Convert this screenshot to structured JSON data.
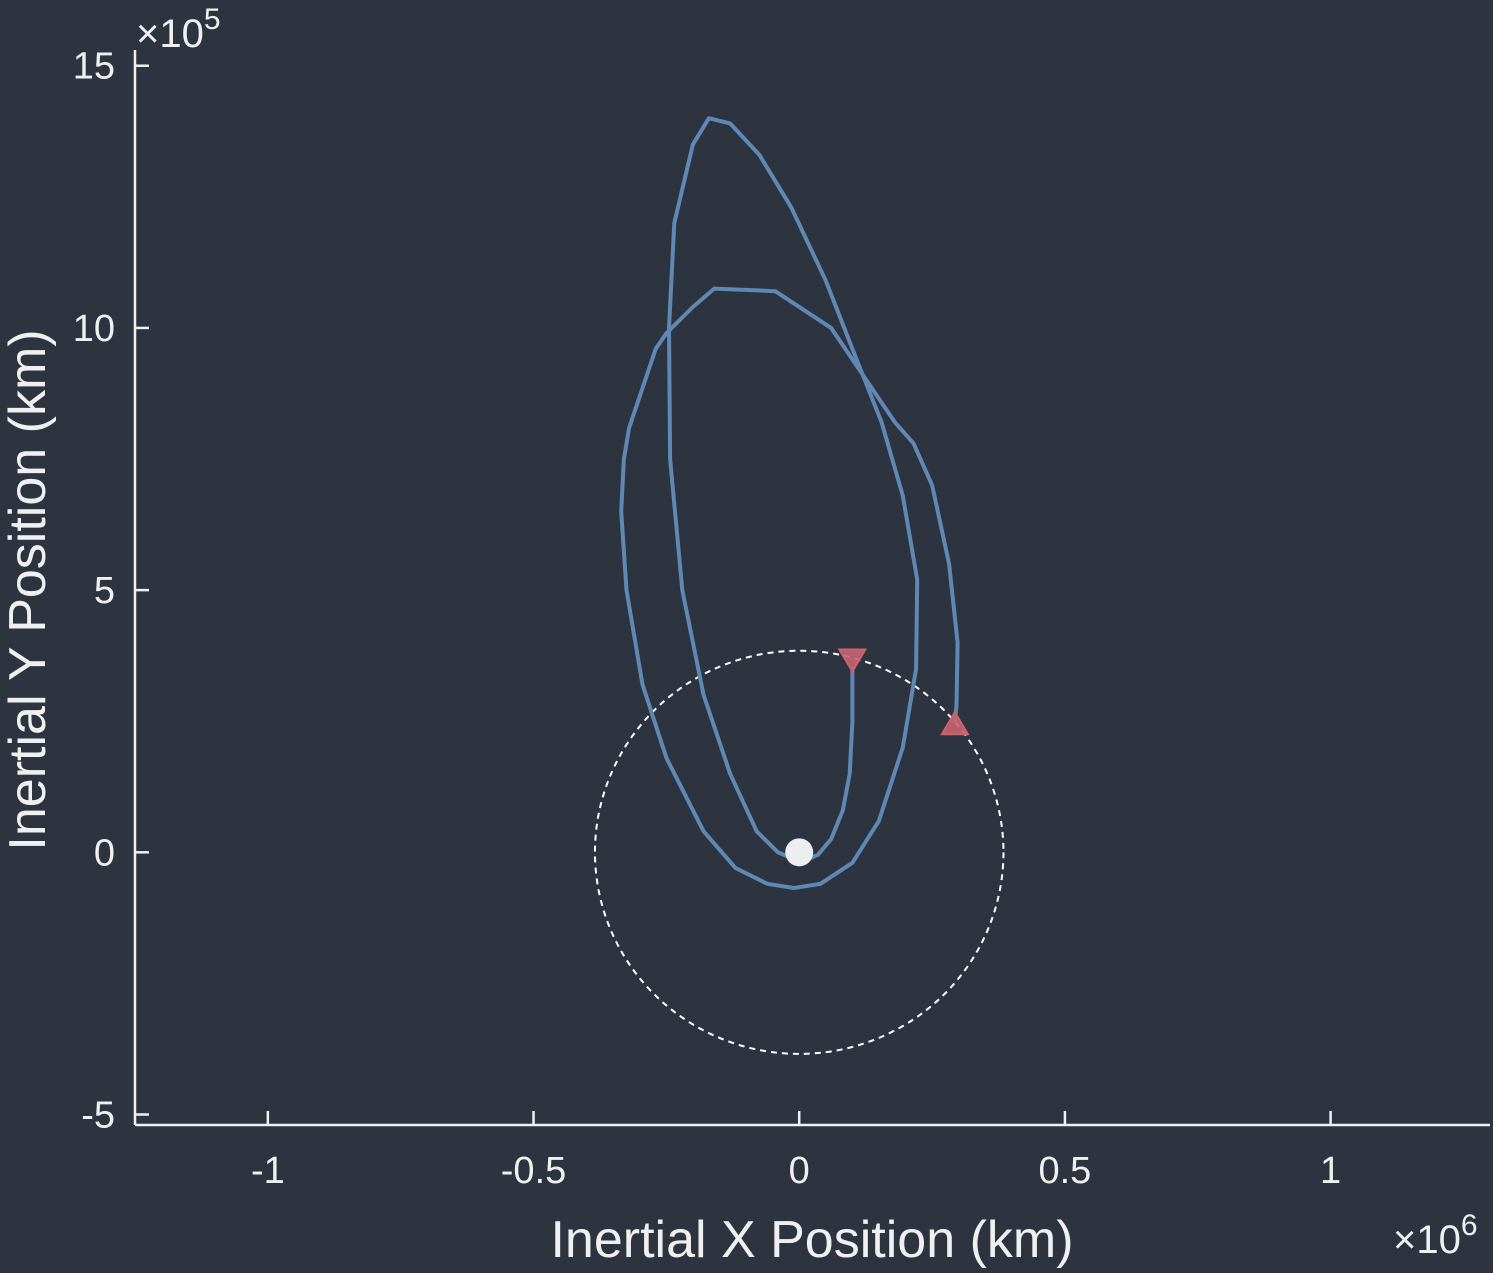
{
  "chart_data": {
    "type": "line",
    "xlabel": "Inertial X Position (km)",
    "ylabel": "Inertial Y Position (km)",
    "x_exponent": "6",
    "y_exponent": "5",
    "x_exponent_prefix": "×10",
    "y_exponent_prefix": "×10",
    "xlim": [
      -1.25,
      1.3
    ],
    "ylim": [
      -5.2,
      15.3
    ],
    "x_ticks": [
      -1,
      -0.5,
      0,
      0.5,
      1
    ],
    "x_tick_labels": [
      "-1",
      "-0.5",
      "0",
      "0.5",
      "1"
    ],
    "y_ticks": [
      -5,
      0,
      5,
      10,
      15
    ],
    "y_tick_labels": [
      "-5",
      "0",
      "5",
      "10",
      "15"
    ],
    "grid": false,
    "colors": {
      "background": "#2e3340",
      "axes": "#f0f0f0",
      "trajectory": "#6088b4",
      "markers": "#c86470",
      "body": "#eceef2",
      "orbit_circle": "#ffffff"
    },
    "series": [
      {
        "style": "solid",
        "points": [
          [
            0.1,
            3.5
          ],
          [
            0.1,
            2.5
          ],
          [
            0.095,
            1.5
          ],
          [
            0.082,
            0.8
          ],
          [
            0.06,
            0.25
          ],
          [
            0.035,
            -0.05
          ],
          [
            0.012,
            -0.15
          ],
          [
            -0.012,
            -0.12
          ],
          [
            -0.04,
            0.0
          ],
          [
            -0.08,
            0.4
          ],
          [
            -0.13,
            1.5
          ],
          [
            -0.18,
            3.0
          ],
          [
            -0.22,
            5.0
          ],
          [
            -0.243,
            7.5
          ],
          [
            -0.245,
            10.0
          ],
          [
            -0.235,
            12.0
          ],
          [
            -0.2,
            13.5
          ],
          [
            -0.17,
            14.0
          ],
          [
            -0.13,
            13.9
          ],
          [
            -0.075,
            13.3
          ],
          [
            -0.015,
            12.3
          ],
          [
            0.05,
            10.9
          ],
          [
            0.1,
            9.6
          ],
          [
            0.155,
            8.2
          ],
          [
            0.195,
            6.8
          ],
          [
            0.222,
            5.2
          ],
          [
            0.22,
            3.5
          ],
          [
            0.195,
            2.0
          ],
          [
            0.15,
            0.6
          ],
          [
            0.1,
            -0.2
          ],
          [
            0.04,
            -0.6
          ],
          [
            -0.01,
            -0.68
          ],
          [
            -0.06,
            -0.6
          ],
          [
            -0.12,
            -0.3
          ],
          [
            -0.18,
            0.4
          ],
          [
            -0.25,
            1.8
          ],
          [
            -0.295,
            3.2
          ],
          [
            -0.325,
            5.0
          ],
          [
            -0.335,
            6.5
          ],
          [
            -0.33,
            7.5
          ],
          [
            -0.32,
            8.1
          ],
          [
            -0.27,
            9.6
          ],
          [
            -0.25,
            9.9
          ],
          [
            -0.2,
            10.4
          ],
          [
            -0.16,
            10.75
          ],
          [
            -0.045,
            10.7
          ],
          [
            0.06,
            10.0
          ],
          [
            0.18,
            8.2
          ],
          [
            0.215,
            7.8
          ],
          [
            0.25,
            7.0
          ],
          [
            0.282,
            5.5
          ],
          [
            0.298,
            4.0
          ],
          [
            0.296,
            2.8
          ],
          [
            0.293,
            2.5
          ]
        ]
      },
      {
        "style": "dashed",
        "center": [
          0,
          0
        ],
        "radius": 0.3844,
        "points": []
      }
    ],
    "markers": [
      {
        "shape": "triangle-down",
        "x": 0.1,
        "y": 3.67
      },
      {
        "shape": "triangle-up",
        "x": 0.293,
        "y": 2.45
      }
    ],
    "body": {
      "x": 0,
      "y": 0
    }
  }
}
